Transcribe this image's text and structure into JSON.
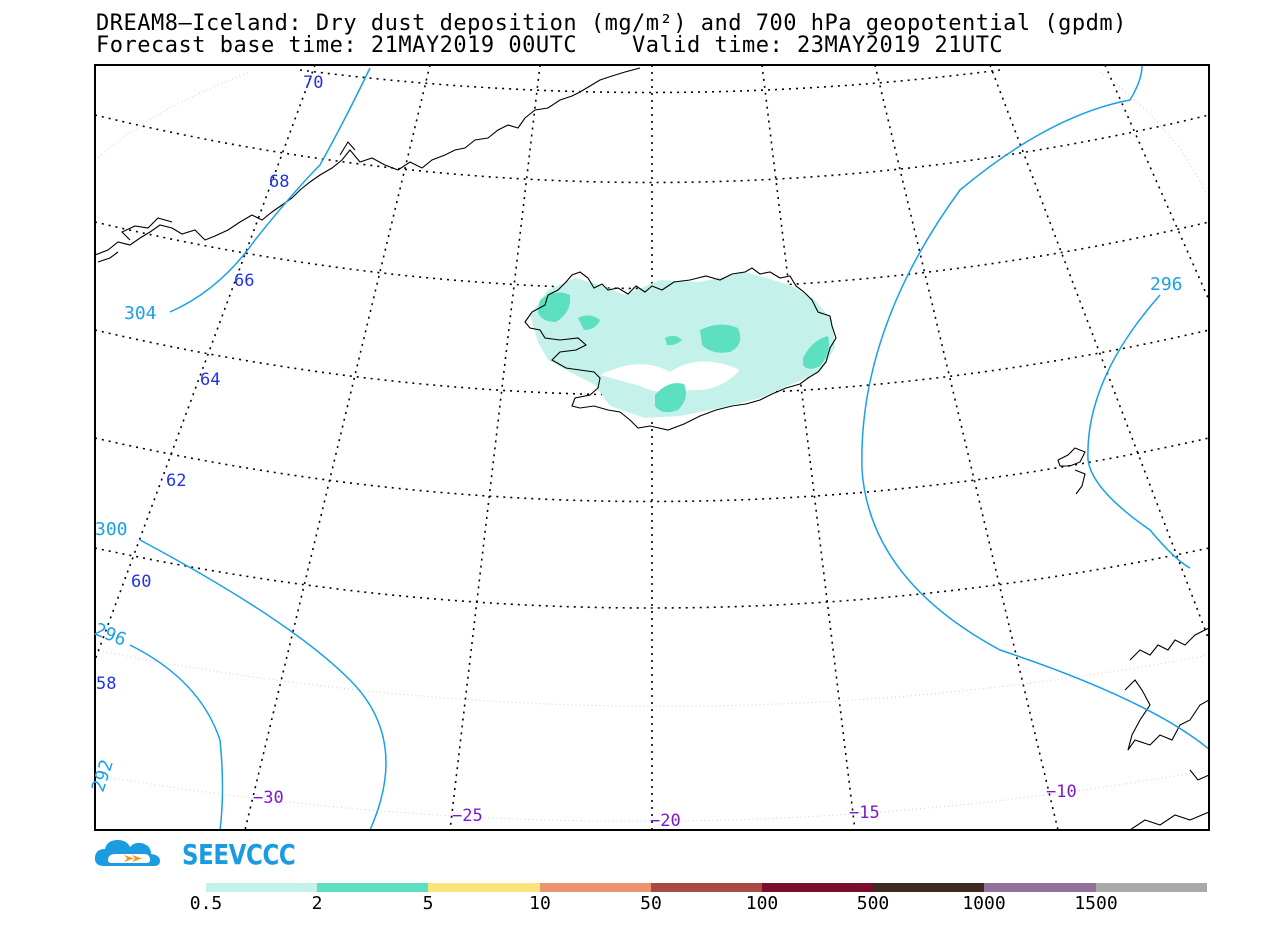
{
  "title": {
    "line1": "DREAM8—Iceland: Dry dust deposition (mg/m²) and 700 hPa geopotential (gpdm)",
    "line2": "Forecast base time: 21MAY2019 00UTC    Valid time: 23MAY2019 21UTC"
  },
  "latitude_labels": [
    "70",
    "68",
    "66",
    "64",
    "62",
    "60",
    "58"
  ],
  "longitude_labels": [
    "−30",
    "−25",
    "−20",
    "−15",
    "−10"
  ],
  "contour_labels": [
    "304",
    "300",
    "296",
    "292",
    "296"
  ],
  "logo": {
    "text": "SEEVCCC"
  },
  "colorbar": {
    "colors": [
      "#c4f2ea",
      "#5ce0bf",
      "#fae57a",
      "#ec9470",
      "#a54b44",
      "#7a0c2e",
      "#3e2a1e",
      "#93709a",
      "#a9a9a9"
    ],
    "labels": [
      "0.5",
      "2",
      "5",
      "10",
      "50",
      "100",
      "500",
      "1000",
      "1500"
    ]
  },
  "colors": {
    "contour": "#1aa0e6",
    "lat_label": "#2233e6",
    "lon_label": "#7a1ad0"
  }
}
